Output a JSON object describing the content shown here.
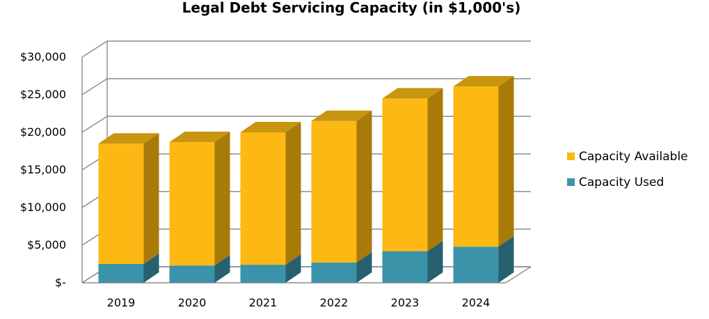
{
  "chart_data": {
    "type": "bar",
    "stacked": true,
    "three_d": true,
    "title": "Legal Debt Servicing Capacity (in $1,000's)",
    "xlabel": "",
    "ylabel": "",
    "categories": [
      "2019",
      "2020",
      "2021",
      "2022",
      "2023",
      "2024"
    ],
    "series": [
      {
        "name": "Capacity Used",
        "color": "#3a93a8",
        "side_color": "#27606f",
        "top_color": "#2e7c8e",
        "values": [
          2500,
          2300,
          2400,
          2700,
          4200,
          4800
        ]
      },
      {
        "name": "Capacity Available",
        "color": "#fdb813",
        "side_color": "#a87a08",
        "top_color": "#c8950f",
        "values": [
          16000,
          16400,
          17600,
          18800,
          20300,
          21300
        ]
      }
    ],
    "ylim": [
      0,
      30000
    ],
    "y_ticks": [
      0,
      5000,
      10000,
      15000,
      20000,
      25000,
      30000
    ],
    "y_tick_labels": [
      "$-",
      "$5,000",
      "$10,000",
      "$15,000",
      "$20,000",
      "$25,000",
      "$30,000"
    ],
    "grid": true,
    "legend": {
      "position": "right",
      "entries": [
        "Capacity Available",
        "Capacity Used"
      ]
    }
  }
}
